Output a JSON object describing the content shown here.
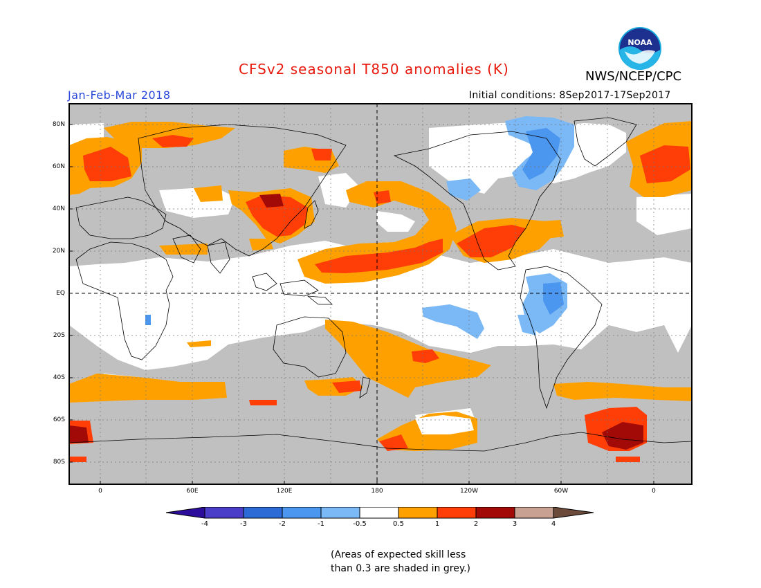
{
  "header": {
    "title": "CFSv2 seasonal T850 anomalies (K)",
    "org": "NWS/NCEP/CPC",
    "period": "Jan-Feb-Mar 2018",
    "initial_conditions": "Initial conditions: 8Sep2017-17Sep2017",
    "logo_text": "NOAA"
  },
  "map": {
    "projection": "Cylindrical equidistant",
    "central_longitude": "180",
    "lat_ticks": [
      "80N",
      "60N",
      "40N",
      "20N",
      "EQ",
      "20S",
      "40S",
      "60S",
      "80S"
    ],
    "lon_ticks": [
      "0",
      "60E",
      "120E",
      "180",
      "120W",
      "60W",
      "0"
    ],
    "grid": true
  },
  "colorbar": {
    "ticks": [
      "-4",
      "-3",
      "-2",
      "-1",
      "-0.5",
      "0.5",
      "1",
      "2",
      "3",
      "4"
    ],
    "colors": [
      "#2c0c9a",
      "#4a3ec8",
      "#2c6ad6",
      "#4b96ee",
      "#7ab8f6",
      "#ffffff",
      "#fea100",
      "#ff3d06",
      "#a10a06",
      "#c9a192",
      "#6b4a3a"
    ]
  },
  "palette": {
    "grey": "#c0c0c0",
    "orange": "#fea100",
    "red": "#ff3d06",
    "darkred": "#a10a06",
    "lightblue": "#7ab8f6",
    "blue": "#4b96ee"
  },
  "footnote": {
    "line1": "(Areas of expected skill less",
    "line2": "than 0.3 are shaded in grey.)"
  }
}
